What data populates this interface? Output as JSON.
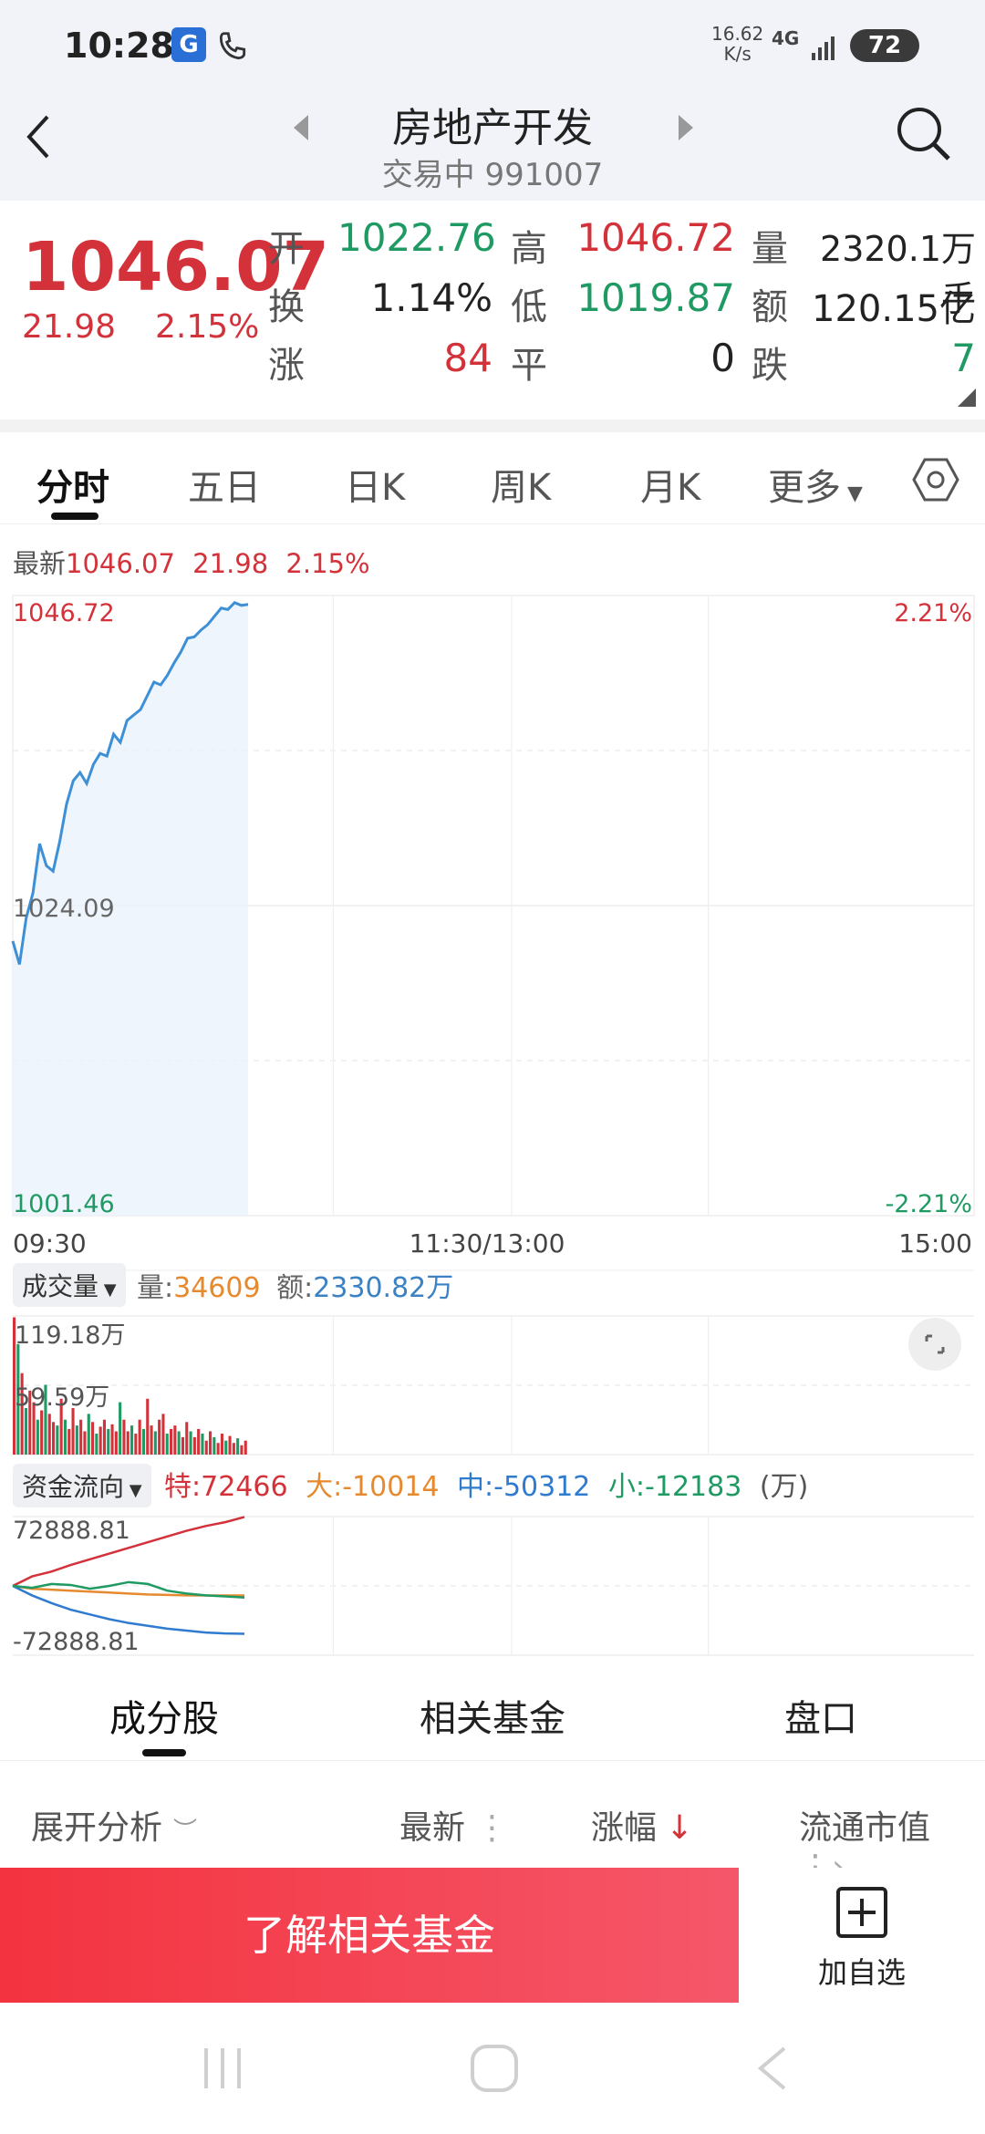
{
  "status": {
    "time": "10:28",
    "net_speed_value": "16.62",
    "net_speed_unit": "K/s",
    "network": "4G",
    "battery": "72"
  },
  "header": {
    "title": "房地产开发",
    "trade_status": "交易中",
    "code": "991007"
  },
  "quote": {
    "price": "1046.07",
    "change": "21.98",
    "change_pct": "2.15%",
    "open_label": "开",
    "open": "1022.76",
    "high_label": "高",
    "high": "1046.72",
    "volume_label": "量",
    "volume": "2320.1万手",
    "turnover_label": "换",
    "turnover": "1.14%",
    "low_label": "低",
    "low": "1019.87",
    "amount_label": "额",
    "amount": "120.15亿",
    "up_label": "涨",
    "up": "84",
    "flat_label": "平",
    "flat": "0",
    "down_label": "跌",
    "down": "7"
  },
  "tabs": [
    "分时",
    "五日",
    "日K",
    "周K",
    "月K",
    "更多"
  ],
  "colors": {
    "red": "#d3323a",
    "green": "#1f9a63",
    "line": "#3d8fd6",
    "orange": "#e58a2e",
    "blue": "#2f7bd0",
    "accent": "#f2434f"
  },
  "latest": {
    "label": "最新",
    "price": "1046.07",
    "change": "21.98",
    "pct": "2.15%"
  },
  "chart_data": [
    {
      "type": "line",
      "title": "",
      "x_ticks": [
        "09:30",
        "11:30/13:00",
        "15:00"
      ],
      "y_ticks_left": [
        "1046.72",
        "1024.09",
        "1001.46"
      ],
      "y_ticks_right": [
        "2.21%",
        "-2.21%"
      ],
      "ylim": [
        1001.46,
        1046.72
      ],
      "series": [
        {
          "values": [
            1021.5,
            1019.8,
            1023.2,
            1025.0,
            1028.6,
            1027.0,
            1026.6,
            1028.8,
            1031.5,
            1033.2,
            1033.8,
            1033.0,
            1034.4,
            1035.2,
            1035.0,
            1036.6,
            1036.0,
            1037.6,
            1038.0,
            1038.4,
            1039.4,
            1040.4,
            1040.2,
            1040.9,
            1041.8,
            1042.6,
            1043.6,
            1043.7,
            1044.2,
            1044.6,
            1045.2,
            1045.8,
            1045.7,
            1046.2,
            1046.0,
            1046.07
          ]
        }
      ]
    },
    {
      "type": "bar",
      "title": "成交量",
      "y_ticks": [
        "119.18万",
        "59.59万"
      ],
      "ylim": [
        0,
        119.18
      ],
      "values": [
        118,
        95,
        70,
        40,
        55,
        45,
        30,
        38,
        60,
        35,
        28,
        25,
        48,
        30,
        22,
        40,
        25,
        30,
        20,
        35,
        28,
        18,
        24,
        30,
        22,
        26,
        20,
        45,
        30,
        20,
        25,
        18,
        30,
        22,
        48,
        25,
        20,
        30,
        35,
        18,
        22,
        25,
        20,
        15,
        28,
        20,
        15,
        22,
        18,
        12,
        20,
        15,
        10,
        18,
        12,
        16,
        10,
        14,
        8,
        12
      ],
      "up": [
        true,
        false,
        true,
        false,
        true,
        true,
        false,
        true,
        false,
        true,
        true,
        false,
        true,
        false,
        true,
        true,
        false,
        true,
        true,
        false,
        true,
        false,
        true,
        true,
        false,
        true,
        true,
        false,
        true,
        true,
        false,
        true,
        true,
        false,
        true,
        true,
        false,
        true,
        true,
        false,
        true,
        true,
        false,
        true,
        true,
        false,
        true,
        true,
        false,
        true,
        true,
        false,
        true,
        true,
        false,
        true,
        true,
        false,
        true,
        true
      ]
    },
    {
      "type": "line",
      "title": "资金流向",
      "y_ticks": [
        "72888.81",
        "-72888.81"
      ],
      "ylim": [
        -72888.81,
        72888.81
      ],
      "series": [
        {
          "name": "特",
          "values": [
            0,
            10000,
            15000,
            22000,
            28000,
            34000,
            40000,
            46000,
            52000,
            58000,
            63000,
            67000,
            72466
          ]
        },
        {
          "name": "大",
          "values": [
            0,
            -3000,
            -4000,
            -5000,
            -6000,
            -7000,
            -8000,
            -9000,
            -9500,
            -10000,
            -10014,
            -10014,
            -10014
          ]
        },
        {
          "name": "中",
          "values": [
            0,
            -10000,
            -18000,
            -25000,
            -30000,
            -35000,
            -39000,
            -42000,
            -45000,
            -47000,
            -49000,
            -50000,
            -50312
          ]
        },
        {
          "name": "小",
          "values": [
            0,
            -2000,
            2000,
            1000,
            -3000,
            0,
            4000,
            2000,
            -5000,
            -8000,
            -10000,
            -11000,
            -12183
          ]
        }
      ]
    }
  ],
  "volume_info": {
    "label": "成交量",
    "qty_label": "量:",
    "qty": "34609",
    "amt_label": "额:",
    "amt": "2330.82万"
  },
  "flow_info": {
    "label": "资金流向",
    "te": "特:72466",
    "da": "大:-10014",
    "zhong": "中:-50312",
    "xiao": "小:-12183",
    "unit": "(万)"
  },
  "sections": [
    "成分股",
    "相关基金",
    "盘口"
  ],
  "columns": {
    "expand": "展开分析",
    "latest": "最新",
    "change": "涨幅",
    "cap": "流通市值"
  },
  "bottom": {
    "cta": "了解相关基金",
    "add": "加自选"
  }
}
